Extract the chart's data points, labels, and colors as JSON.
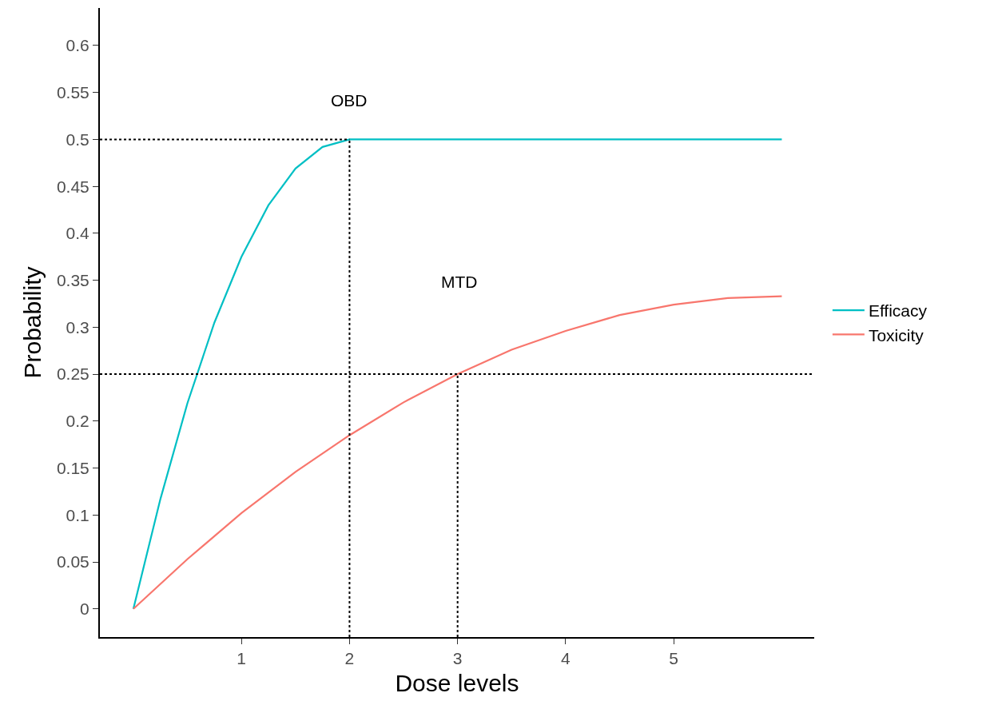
{
  "chart_data": {
    "type": "line",
    "xlabel": "Dose levels",
    "ylabel": "Probability",
    "xlim": [
      -0.31,
      6.3
    ],
    "ylim": [
      -0.03,
      0.64
    ],
    "xticks": [
      1,
      2,
      3,
      4,
      5
    ],
    "yticks": [
      0,
      0.05,
      0.1,
      0.15,
      0.2,
      0.25,
      0.3,
      0.35,
      0.4,
      0.45,
      0.5,
      0.55,
      0.6
    ],
    "grid": false,
    "legend": "right",
    "marker": "none",
    "line_style": "solid",
    "series": [
      {
        "name": "Efficacy",
        "color": "#00bfc4",
        "x": [
          0,
          0.25,
          0.5,
          0.75,
          1,
          1.25,
          1.5,
          1.75,
          2,
          6
        ],
        "values": [
          0,
          0.117,
          0.219,
          0.305,
          0.375,
          0.43,
          0.469,
          0.492,
          0.5,
          0.5
        ]
      },
      {
        "name": "Toxicity",
        "color": "#f8766d",
        "x": [
          0,
          0.5,
          1,
          1.5,
          2,
          2.5,
          3,
          3.5,
          4,
          4.5,
          5,
          5.5,
          6
        ],
        "values": [
          0,
          0.053,
          0.102,
          0.146,
          0.185,
          0.22,
          0.25,
          0.276,
          0.296,
          0.313,
          0.324,
          0.331,
          0.333
        ]
      },
      {
        "color": "#000000",
        "line_style": "dotted",
        "x": [
          -0.31,
          2
        ],
        "values": [
          0.5,
          0.5
        ]
      },
      {
        "color": "#000000",
        "line_style": "dotted",
        "x": [
          2,
          2
        ],
        "values": [
          -0.03,
          0.5
        ]
      },
      {
        "color": "#000000",
        "line_style": "dotted",
        "x": [
          -0.31,
          6.3
        ],
        "values": [
          0.25,
          0.25
        ]
      },
      {
        "color": "#000000",
        "line_style": "dotted",
        "x": [
          3,
          3
        ],
        "values": [
          -0.03,
          0.25
        ]
      }
    ],
    "annotations": [
      "OBD",
      "MTD"
    ]
  }
}
